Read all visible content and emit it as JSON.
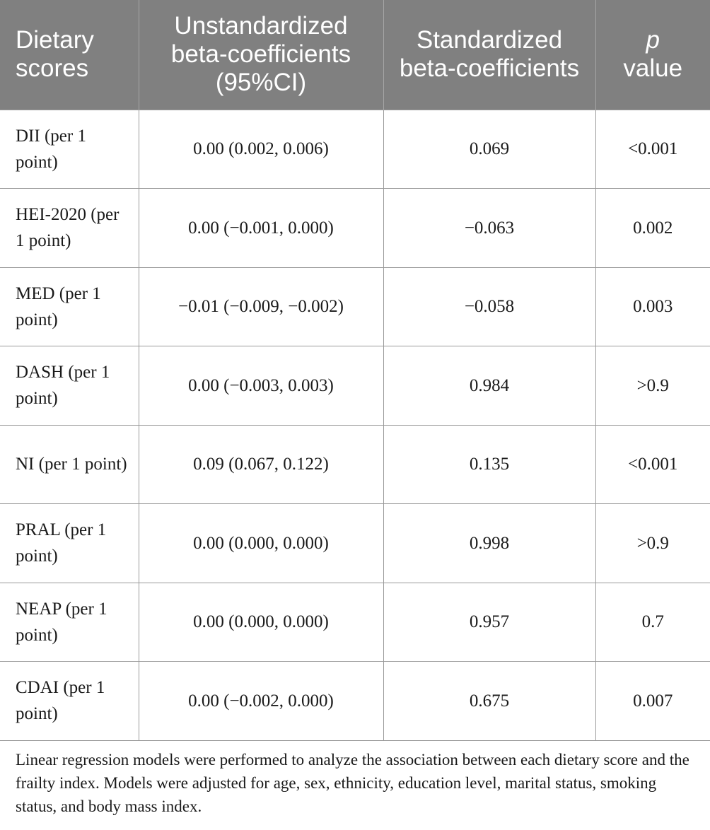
{
  "table": {
    "header": [
      "Dietary scores",
      "Unstandardized beta-coefficients (95%CI)",
      "Standardized beta-coefficients",
      [
        "p",
        "value"
      ]
    ],
    "rows": [
      [
        "DII (per 1 point)",
        "0.00 (0.002, 0.006)",
        "0.069",
        "<0.001"
      ],
      [
        "HEI-2020 (per 1 point)",
        "0.00 (−0.001, 0.000)",
        "−0.063",
        "0.002"
      ],
      [
        "MED (per 1 point)",
        "−0.01 (−0.009, −0.002)",
        "−0.058",
        "0.003"
      ],
      [
        "DASH (per 1 point)",
        "0.00 (−0.003, 0.003)",
        "0.984",
        ">0.9"
      ],
      [
        "NI (per 1 point)",
        "0.09 (0.067, 0.122)",
        "0.135",
        "<0.001"
      ],
      [
        "PRAL (per 1 point)",
        "0.00 (0.000, 0.000)",
        "0.998",
        ">0.9"
      ],
      [
        "NEAP (per 1 point)",
        "0.00 (0.000, 0.000)",
        "0.957",
        "0.7"
      ],
      [
        "CDAI (per 1 point)",
        "0.00 (−0.002, 0.000)",
        "0.675",
        "0.007"
      ]
    ],
    "footnote": "Linear regression models were performed to analyze the association between each dietary score and the frailty index. Models were adjusted for age, sex, ethnicity, education level, marital status, smoking status, and body mass index."
  }
}
